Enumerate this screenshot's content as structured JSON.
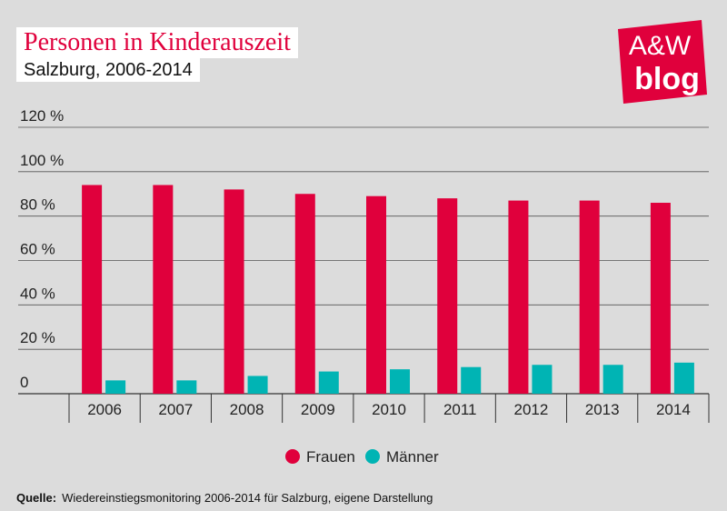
{
  "header": {
    "title": "Personen in Kinderauszeit",
    "subtitle": "Salzburg, 2006-2014"
  },
  "logo": {
    "line1": "A&W",
    "line2": "blog"
  },
  "source": {
    "label": "Quelle:",
    "text": "Wiedereinstiegsmonitoring 2006-2014 für Salzburg, eigene Darstellung"
  },
  "colors": {
    "frauen": "#e0003c",
    "maenner": "#00b4b4",
    "brand": "#e0003c"
  },
  "chart_data": {
    "type": "bar",
    "categories": [
      "2006",
      "2007",
      "2008",
      "2009",
      "2010",
      "2011",
      "2012",
      "2013",
      "2014"
    ],
    "series": [
      {
        "name": "Frauen",
        "values": [
          94,
          94,
          92,
          90,
          89,
          88,
          87,
          87,
          86
        ]
      },
      {
        "name": "Männer",
        "values": [
          6,
          6,
          8,
          10,
          11,
          12,
          13,
          13,
          14
        ]
      }
    ],
    "y_ticks": [
      "0",
      "20 %",
      "40 %",
      "60 %",
      "80 %",
      "100 %",
      "120 %"
    ],
    "ylim": [
      0,
      120
    ],
    "grid": true,
    "legend": "bottom-center"
  }
}
